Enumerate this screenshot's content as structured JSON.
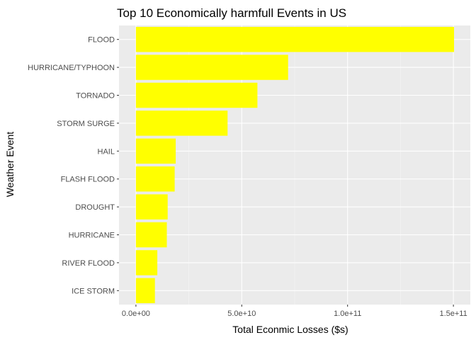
{
  "chart_data": {
    "type": "bar",
    "orientation": "horizontal",
    "title": "Top 10 Economically harmfull  Events in US",
    "xlabel": "Total Econmic Losses ($s)",
    "ylabel": "Weather Event",
    "categories": [
      "FLOOD",
      "HURRICANE/TYPHOON",
      "TORNADO",
      "STORM SURGE",
      "HAIL",
      "FLASH FLOOD",
      "DROUGHT",
      "HURRICANE",
      "RIVER FLOOD",
      "ICE STORM"
    ],
    "values": [
      150300000000,
      71900000000,
      57400000000,
      43300000000,
      18800000000,
      18300000000,
      15000000000,
      14600000000,
      10100000000,
      8970000000
    ],
    "xlim": [
      -8000000000,
      158000000000
    ],
    "xticks": [
      0,
      50000000000,
      100000000000,
      150000000000
    ],
    "xtick_labels": [
      "0.0e+00",
      "5.0e+10",
      "1.0e+11",
      "1.5e+11"
    ],
    "grid": true,
    "legend": "none",
    "colors": {
      "bar": "#ffff00",
      "panel": "#ebebeb",
      "grid_major": "#ffffff",
      "grid_minor": "#f5f5f5",
      "tick_label": "#4d4d4d",
      "tick_mark": "#333333"
    }
  }
}
